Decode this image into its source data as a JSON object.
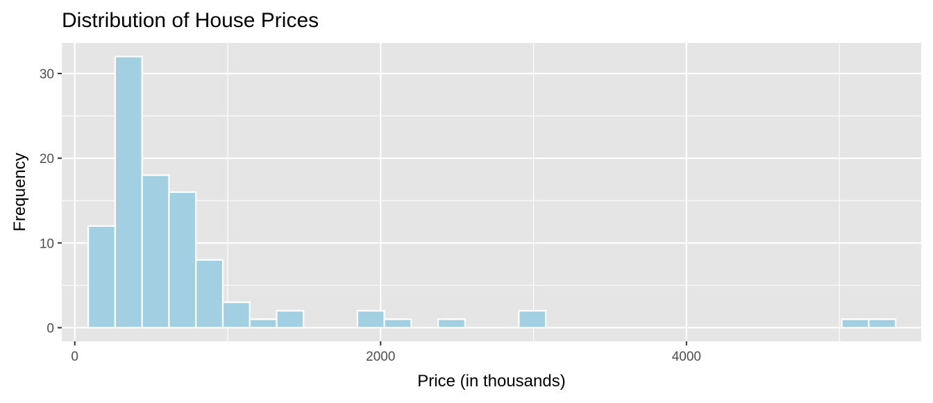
{
  "chart_data": {
    "type": "bar",
    "subtype": "histogram",
    "title": "Distribution of House Prices",
    "xlabel": "Price (in thousands)",
    "ylabel": "Frequency",
    "xlim": [
      -85,
      5535
    ],
    "ylim": [
      -1.6,
      33.6
    ],
    "x_ticks": [
      0,
      2000,
      4000
    ],
    "x_tick_labels": [
      "0",
      "2000",
      "4000"
    ],
    "x_minor_ticks": [
      1000,
      3000,
      5000
    ],
    "y_ticks": [
      0,
      10,
      20,
      30
    ],
    "y_tick_labels": [
      "0",
      "10",
      "20",
      "30"
    ],
    "y_minor_ticks": [
      5,
      15,
      25
    ],
    "grid": true,
    "colors": {
      "bar_fill": "#a2d0e2",
      "bar_outline": "#ffffff",
      "panel_background": "#e5e5e5",
      "grid": "#ffffff"
    },
    "bins": [
      {
        "x0": 88,
        "x1": 264,
        "count": 12
      },
      {
        "x0": 264,
        "x1": 440,
        "count": 32
      },
      {
        "x0": 440,
        "x1": 616,
        "count": 18
      },
      {
        "x0": 616,
        "x1": 792,
        "count": 16
      },
      {
        "x0": 792,
        "x1": 968,
        "count": 8
      },
      {
        "x0": 968,
        "x1": 1144,
        "count": 3
      },
      {
        "x0": 1144,
        "x1": 1320,
        "count": 1
      },
      {
        "x0": 1320,
        "x1": 1496,
        "count": 2
      },
      {
        "x0": 1496,
        "x1": 1672,
        "count": 0
      },
      {
        "x0": 1672,
        "x1": 1848,
        "count": 0
      },
      {
        "x0": 1848,
        "x1": 2024,
        "count": 2
      },
      {
        "x0": 2024,
        "x1": 2200,
        "count": 1
      },
      {
        "x0": 2200,
        "x1": 2376,
        "count": 0
      },
      {
        "x0": 2376,
        "x1": 2552,
        "count": 1
      },
      {
        "x0": 2552,
        "x1": 2728,
        "count": 0
      },
      {
        "x0": 2728,
        "x1": 2904,
        "count": 0
      },
      {
        "x0": 2904,
        "x1": 3080,
        "count": 2
      },
      {
        "x0": 3080,
        "x1": 3256,
        "count": 0
      },
      {
        "x0": 3256,
        "x1": 3432,
        "count": 0
      },
      {
        "x0": 3432,
        "x1": 3608,
        "count": 0
      },
      {
        "x0": 3608,
        "x1": 3784,
        "count": 0
      },
      {
        "x0": 3784,
        "x1": 3960,
        "count": 0
      },
      {
        "x0": 3960,
        "x1": 4136,
        "count": 0
      },
      {
        "x0": 4136,
        "x1": 4312,
        "count": 0
      },
      {
        "x0": 4312,
        "x1": 4488,
        "count": 0
      },
      {
        "x0": 4488,
        "x1": 4664,
        "count": 0
      },
      {
        "x0": 4664,
        "x1": 4840,
        "count": 0
      },
      {
        "x0": 4840,
        "x1": 5016,
        "count": 0
      },
      {
        "x0": 5016,
        "x1": 5192,
        "count": 1
      },
      {
        "x0": 5192,
        "x1": 5368,
        "count": 1
      }
    ]
  }
}
